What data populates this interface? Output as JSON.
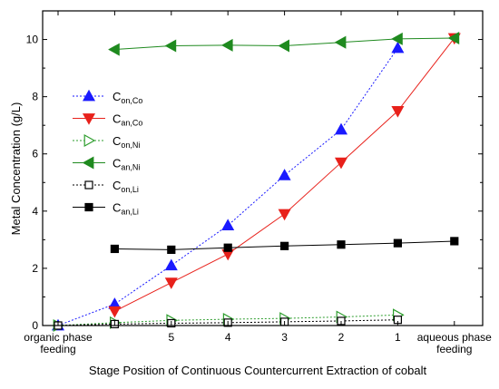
{
  "chart_data": {
    "type": "line",
    "xlabel": "Stage Position of Continuous Countercurrent Extraction of cobalt",
    "ylabel": "Metal Concentration (g/L)",
    "ylim": [
      0,
      11
    ],
    "yticks": [
      0,
      2,
      4,
      6,
      8,
      10
    ],
    "grid": false,
    "legend_position": "left",
    "x_positions": [
      "organic phase feeding",
      "6",
      "5",
      "4",
      "3",
      "2",
      "1",
      "aqueous phase feeding"
    ],
    "x_tick_labels": [
      {
        "pos": "organic phase feeding",
        "lines": [
          "organic phase",
          "feeding"
        ]
      },
      {
        "pos": "6",
        "lines": [
          ""
        ]
      },
      {
        "pos": "5",
        "lines": [
          "5"
        ]
      },
      {
        "pos": "4",
        "lines": [
          "4"
        ]
      },
      {
        "pos": "3",
        "lines": [
          "3"
        ]
      },
      {
        "pos": "2",
        "lines": [
          "2"
        ]
      },
      {
        "pos": "1",
        "lines": [
          "1"
        ]
      },
      {
        "pos": "aqueous phase feeding",
        "lines": [
          "aqueous phase",
          "feeding"
        ]
      }
    ],
    "series": [
      {
        "name": "C",
        "sub": "on,Co",
        "color": "#1a1aff",
        "marker": "triangle-up",
        "filled": true,
        "dash": "dot",
        "points": [
          [
            "organic phase feeding",
            0.0
          ],
          [
            "6",
            0.75
          ],
          [
            "5",
            2.1
          ],
          [
            "4",
            3.5
          ],
          [
            "3",
            5.25
          ],
          [
            "2",
            6.85
          ],
          [
            "1",
            9.7
          ]
        ]
      },
      {
        "name": "C",
        "sub": "an,Co",
        "color": "#e8211b",
        "marker": "triangle-down",
        "filled": true,
        "dash": "solid",
        "points": [
          [
            "6",
            0.5
          ],
          [
            "5",
            1.5
          ],
          [
            "4",
            2.5
          ],
          [
            "3",
            3.9
          ],
          [
            "2",
            5.7
          ],
          [
            "1",
            7.5
          ],
          [
            "aqueous phase feeding",
            10.05
          ]
        ]
      },
      {
        "name": "C",
        "sub": "on,Ni",
        "color": "#2e9e2e",
        "marker": "triangle-right",
        "filled": false,
        "dash": "dot",
        "points": [
          [
            "organic phase feeding",
            0.0
          ],
          [
            "6",
            0.1
          ],
          [
            "5",
            0.18
          ],
          [
            "4",
            0.22
          ],
          [
            "3",
            0.25
          ],
          [
            "2",
            0.3
          ],
          [
            "1",
            0.37
          ]
        ]
      },
      {
        "name": "C",
        "sub": "an,Ni",
        "color": "#1f8a1f",
        "marker": "triangle-left",
        "filled": true,
        "dash": "solid",
        "points": [
          [
            "6",
            9.65
          ],
          [
            "5",
            9.78
          ],
          [
            "4",
            9.8
          ],
          [
            "3",
            9.78
          ],
          [
            "2",
            9.9
          ],
          [
            "1",
            10.02
          ],
          [
            "aqueous phase feeding",
            10.05
          ]
        ]
      },
      {
        "name": "C",
        "sub": "on,Li",
        "color": "#000000",
        "marker": "square",
        "filled": false,
        "dash": "dot",
        "points": [
          [
            "organic phase feeding",
            0.0
          ],
          [
            "6",
            0.05
          ],
          [
            "5",
            0.08
          ],
          [
            "4",
            0.1
          ],
          [
            "3",
            0.13
          ],
          [
            "2",
            0.16
          ],
          [
            "1",
            0.2
          ]
        ]
      },
      {
        "name": "C",
        "sub": "an,Li",
        "color": "#000000",
        "marker": "square",
        "filled": true,
        "dash": "solid",
        "points": [
          [
            "6",
            2.68
          ],
          [
            "5",
            2.65
          ],
          [
            "4",
            2.72
          ],
          [
            "3",
            2.78
          ],
          [
            "2",
            2.83
          ],
          [
            "1",
            2.88
          ],
          [
            "aqueous phase feeding",
            2.95
          ]
        ]
      }
    ]
  }
}
